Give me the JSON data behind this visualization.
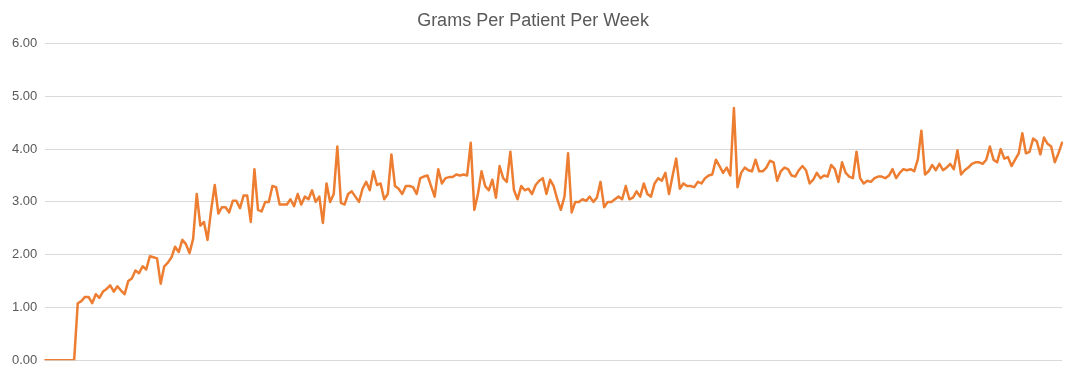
{
  "chart_data": {
    "type": "line",
    "title": "Grams Per Patient Per Week",
    "categories": [
      null,
      null,
      null,
      null,
      null,
      null,
      null,
      null,
      null,
      null,
      null,
      null,
      null,
      null,
      null,
      null,
      null,
      null,
      null,
      null,
      null,
      null,
      null,
      null,
      null,
      null,
      null,
      null,
      null,
      null,
      null,
      null,
      null,
      null,
      null,
      null,
      null,
      null,
      null,
      null,
      null,
      null,
      null,
      null,
      null,
      null,
      null,
      null,
      null,
      null,
      null,
      null,
      null,
      null,
      null,
      null,
      null,
      null,
      null,
      null,
      null,
      null,
      null,
      null,
      null,
      null,
      null,
      null,
      null,
      null,
      null,
      null,
      null,
      null,
      null,
      null,
      null,
      null,
      null,
      null,
      null,
      null,
      null,
      null,
      null,
      null,
      null,
      null,
      null,
      null,
      null,
      null,
      null,
      null,
      null,
      null,
      null,
      null,
      null,
      null,
      null,
      null,
      null,
      null,
      null,
      null,
      null,
      null,
      null,
      null,
      null,
      null,
      null,
      null,
      null,
      null,
      null,
      null,
      null,
      null,
      null,
      null,
      null,
      null,
      null,
      null,
      null,
      null,
      null,
      null,
      null,
      null,
      null,
      null,
      null,
      null,
      null,
      null,
      null,
      null,
      null,
      null,
      null,
      null,
      null,
      null,
      null,
      null,
      null,
      null,
      null,
      null,
      null,
      null,
      null,
      null,
      null,
      null,
      null,
      null,
      null,
      null,
      null,
      null,
      null,
      null,
      null,
      null,
      null,
      null,
      null,
      null,
      null,
      null,
      null,
      null,
      null,
      null,
      null,
      null,
      null,
      null,
      null,
      null,
      null,
      null,
      null,
      null,
      null,
      null,
      null,
      null,
      null,
      null,
      null,
      null,
      null,
      null,
      null,
      null,
      null,
      null,
      null,
      null,
      null,
      null,
      null,
      null,
      null,
      null,
      null,
      null,
      null,
      null,
      null,
      null,
      null,
      null,
      null,
      null,
      null,
      null,
      null,
      null,
      null,
      null,
      null,
      null,
      null,
      null,
      null,
      null,
      null,
      null,
      null,
      null,
      null,
      null,
      null,
      null,
      null,
      null,
      null,
      null,
      null,
      null,
      null,
      null,
      null,
      null,
      null,
      null,
      null,
      null,
      null,
      null,
      null,
      null,
      null,
      null,
      null,
      null,
      null,
      null,
      null,
      null,
      null,
      null,
      null,
      null,
      null,
      null,
      null,
      null,
      null,
      null,
      null,
      null,
      null,
      null,
      null,
      null,
      null
    ],
    "series": [
      {
        "color": "#ed7d31",
        "values": [
          0,
          0,
          0,
          0,
          0,
          0,
          0,
          0,
          0,
          1.08,
          1.12,
          1.2,
          1.2,
          1.08,
          1.25,
          1.18,
          1.3,
          1.35,
          1.42,
          1.3,
          1.4,
          1.32,
          1.25,
          1.5,
          1.55,
          1.7,
          1.65,
          1.78,
          1.72,
          1.97,
          1.95,
          1.93,
          1.45,
          1.78,
          1.85,
          1.95,
          2.15,
          2.05,
          2.28,
          2.2,
          2.03,
          2.3,
          3.15,
          2.55,
          2.62,
          2.28,
          2.85,
          3.32,
          2.78,
          2.9,
          2.9,
          2.8,
          3.02,
          3.02,
          2.88,
          3.12,
          3.12,
          2.62,
          3.62,
          2.85,
          2.82,
          3.0,
          3.0,
          3.3,
          3.28,
          2.95,
          2.95,
          2.95,
          3.05,
          2.92,
          3.15,
          2.95,
          3.1,
          3.05,
          3.22,
          3.0,
          3.1,
          2.6,
          3.35,
          3.0,
          3.15,
          4.05,
          2.98,
          2.95,
          3.15,
          3.2,
          3.1,
          3.0,
          3.25,
          3.38,
          3.22,
          3.58,
          3.32,
          3.35,
          3.05,
          3.15,
          3.9,
          3.3,
          3.25,
          3.15,
          3.3,
          3.3,
          3.28,
          3.15,
          3.45,
          3.48,
          3.5,
          3.3,
          3.1,
          3.62,
          3.35,
          3.45,
          3.47,
          3.47,
          3.52,
          3.5,
          3.52,
          3.5,
          4.12,
          2.85,
          3.15,
          3.58,
          3.3,
          3.22,
          3.42,
          3.08,
          3.68,
          3.45,
          3.38,
          3.95,
          3.22,
          3.05,
          3.3,
          3.22,
          3.25,
          3.15,
          3.32,
          3.4,
          3.45,
          3.15,
          3.42,
          3.3,
          3.05,
          2.85,
          3.1,
          3.92,
          2.8,
          3.0,
          3.0,
          3.05,
          3.02,
          3.1,
          3.0,
          3.08,
          3.38,
          2.9,
          3.0,
          3.0,
          3.05,
          3.1,
          3.05,
          3.3,
          3.05,
          3.08,
          3.2,
          3.1,
          3.35,
          3.15,
          3.1,
          3.35,
          3.45,
          3.4,
          3.55,
          3.15,
          3.5,
          3.82,
          3.25,
          3.35,
          3.3,
          3.3,
          3.28,
          3.38,
          3.35,
          3.45,
          3.5,
          3.52,
          3.8,
          3.68,
          3.55,
          3.65,
          3.5,
          4.78,
          3.28,
          3.55,
          3.65,
          3.6,
          3.58,
          3.8,
          3.58,
          3.58,
          3.65,
          3.78,
          3.75,
          3.4,
          3.58,
          3.65,
          3.62,
          3.5,
          3.48,
          3.6,
          3.68,
          3.6,
          3.35,
          3.42,
          3.55,
          3.45,
          3.5,
          3.48,
          3.7,
          3.62,
          3.38,
          3.75,
          3.55,
          3.48,
          3.45,
          3.95,
          3.45,
          3.35,
          3.4,
          3.38,
          3.45,
          3.48,
          3.48,
          3.45,
          3.5,
          3.62,
          3.45,
          3.55,
          3.62,
          3.6,
          3.62,
          3.58,
          3.8,
          4.35,
          3.52,
          3.58,
          3.7,
          3.6,
          3.72,
          3.6,
          3.65,
          3.72,
          3.62,
          3.98,
          3.52,
          3.6,
          3.65,
          3.72,
          3.75,
          3.75,
          3.72,
          3.8,
          4.05,
          3.8,
          3.75,
          4.0,
          3.82,
          3.85,
          3.68,
          3.8,
          3.92,
          4.3,
          3.92,
          3.95,
          4.2,
          4.15,
          3.9,
          4.22,
          4.1,
          4.05,
          3.75,
          3.92,
          4.12
        ]
      }
    ],
    "ylim": [
      0,
      6
    ],
    "yticks": [
      {
        "value": 0,
        "label": "0.00"
      },
      {
        "value": 1,
        "label": "1.00"
      },
      {
        "value": 2,
        "label": "2.00"
      },
      {
        "value": 3,
        "label": "3.00"
      },
      {
        "value": 4,
        "label": "4.00"
      },
      {
        "value": 5,
        "label": "5.00"
      },
      {
        "value": 6,
        "label": "6.00"
      }
    ],
    "grid": "y",
    "legend": false,
    "marker": "none",
    "line_style": "solid"
  }
}
